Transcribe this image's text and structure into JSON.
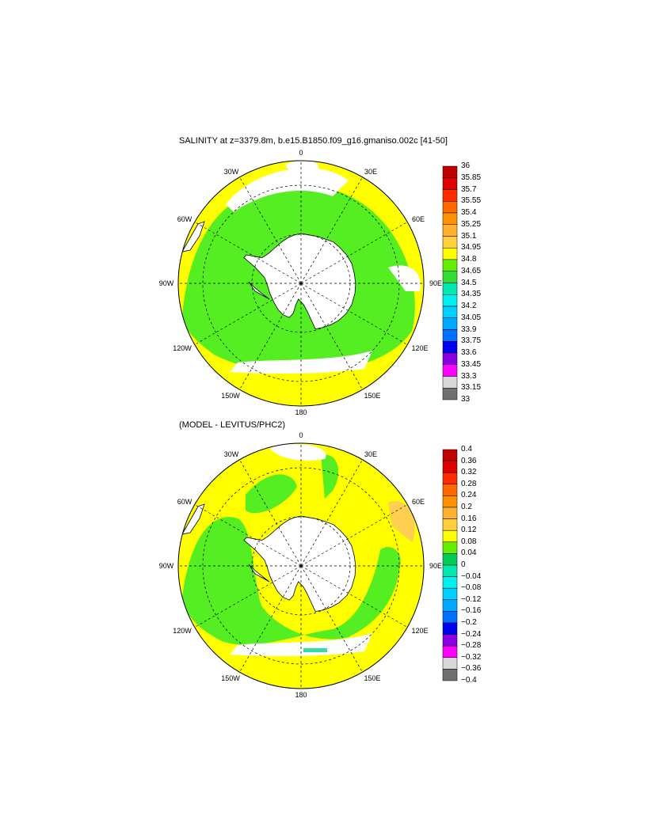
{
  "panels": [
    {
      "title": "SALINITY at z=3379.8m, b.e15.B1850.f09_g16.gmaniso.002c [41-50]",
      "lon_labels": [
        "0",
        "30E",
        "60E",
        "90E",
        "120E",
        "150E",
        "180",
        "150W",
        "120W",
        "90W",
        "60W",
        "30W"
      ],
      "colorbar": {
        "labels": [
          "36",
          "35.85",
          "35.7",
          "35.55",
          "35.4",
          "35.25",
          "35.1",
          "34.95",
          "34.8",
          "34.65",
          "34.5",
          "34.35",
          "34.2",
          "34.05",
          "33.9",
          "33.75",
          "33.6",
          "33.45",
          "33.3",
          "33.15",
          "33"
        ],
        "colors": [
          "#c00000",
          "#e00000",
          "#ff2a00",
          "#ff6a00",
          "#ff9000",
          "#ffb030",
          "#ffcf40",
          "#ffff00",
          "#66ee00",
          "#33dd33",
          "#00e8b0",
          "#00f0f0",
          "#00d0ff",
          "#00a8ff",
          "#0070ff",
          "#0000f0",
          "#8a00e0",
          "#ff00ff",
          "#d8d8d8",
          "#707070"
        ]
      }
    },
    {
      "title": "(MODEL - LEVITUS/PHC2)",
      "lon_labels": [
        "0",
        "30E",
        "60E",
        "90E",
        "120E",
        "150E",
        "180",
        "150W",
        "120W",
        "90W",
        "60W",
        "30W"
      ],
      "colorbar": {
        "labels": [
          "0.4",
          "0.36",
          "0.32",
          "0.28",
          "0.24",
          "0.2",
          "0.16",
          "0.12",
          "0.08",
          "0.04",
          "0",
          "−0.04",
          "−0.08",
          "−0.12",
          "−0.16",
          "−0.2",
          "−0.24",
          "−0.28",
          "−0.32",
          "−0.36",
          "−0.4"
        ],
        "colors": [
          "#c00000",
          "#e00000",
          "#ff2a00",
          "#ff6a00",
          "#ff9000",
          "#ffb030",
          "#ffcf40",
          "#ffff00",
          "#66ee00",
          "#00cc55",
          "#00e8b0",
          "#00f0f0",
          "#00d0ff",
          "#00a8ff",
          "#0070ff",
          "#0000f0",
          "#8a00e0",
          "#ff00ff",
          "#d8d8d8",
          "#707070"
        ]
      }
    }
  ],
  "field_colors": {
    "yellow": "#ffff00",
    "green": "#55ee22",
    "orange": "#ffd050",
    "teal": "#33ddaa",
    "land": "#ffffff",
    "missing": "#ffffff"
  }
}
